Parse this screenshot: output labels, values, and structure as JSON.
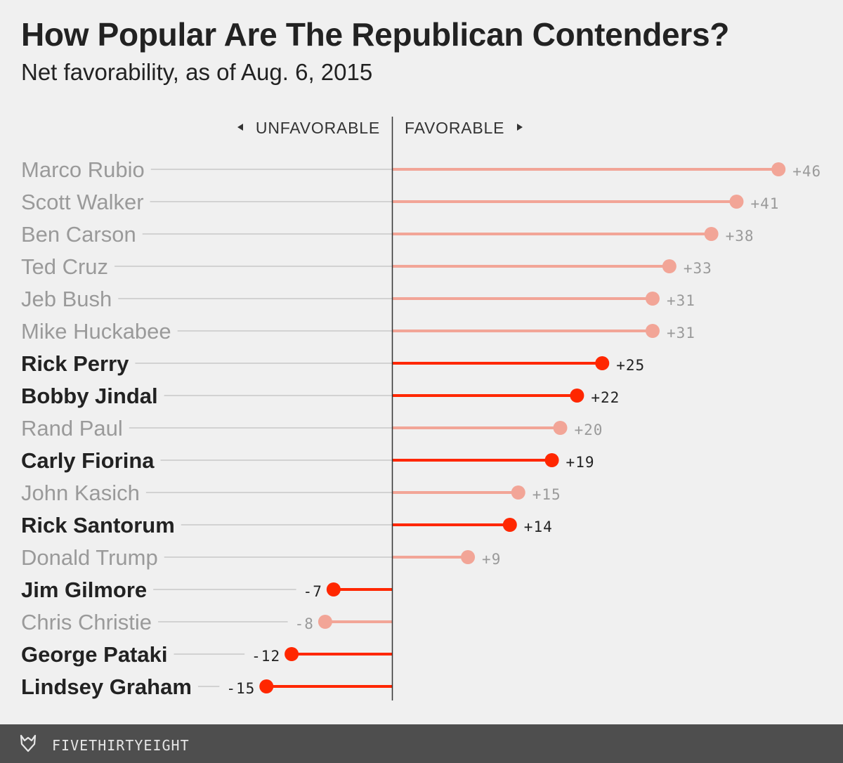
{
  "title": "How Popular Are The Republican Contenders?",
  "subtitle": "Net favorability, as of Aug. 6, 2015",
  "footer": {
    "brand": "FIVETHIRTYEIGHT",
    "logo_icon": "fivethirtyeight-fox-icon"
  },
  "colors": {
    "highlight": "#ff2700",
    "muted": "#f2a597",
    "muted_text": "#9a9a9a",
    "dark_text": "#222222",
    "guide_line": "#c8c8c8",
    "axis_line": "#333333"
  },
  "chart_data": {
    "type": "bar",
    "style": "lollipop",
    "axis_labels": {
      "left": "UNFAVORABLE",
      "right": "FAVORABLE"
    },
    "categories": [
      "Marco Rubio",
      "Scott Walker",
      "Ben Carson",
      "Ted Cruz",
      "Jeb Bush",
      "Mike Huckabee",
      "Rick Perry",
      "Bobby Jindal",
      "Rand Paul",
      "Carly Fiorina",
      "John Kasich",
      "Rick Santorum",
      "Donald Trump",
      "Jim Gilmore",
      "Chris Christie",
      "George Pataki",
      "Lindsey Graham"
    ],
    "values": [
      46,
      41,
      38,
      33,
      31,
      31,
      25,
      22,
      20,
      19,
      15,
      14,
      9,
      -7,
      -8,
      -12,
      -15
    ],
    "value_labels": [
      "+46",
      "+41",
      "+38",
      "+33",
      "+31",
      "+31",
      "+25",
      "+22",
      "+20",
      "+19",
      "+15",
      "+14",
      "+9",
      "-7",
      "-8",
      "-12",
      "-15"
    ],
    "highlighted": [
      false,
      false,
      false,
      false,
      false,
      false,
      true,
      true,
      false,
      true,
      false,
      true,
      false,
      true,
      false,
      true,
      true
    ],
    "grid": false,
    "legend": "none"
  }
}
